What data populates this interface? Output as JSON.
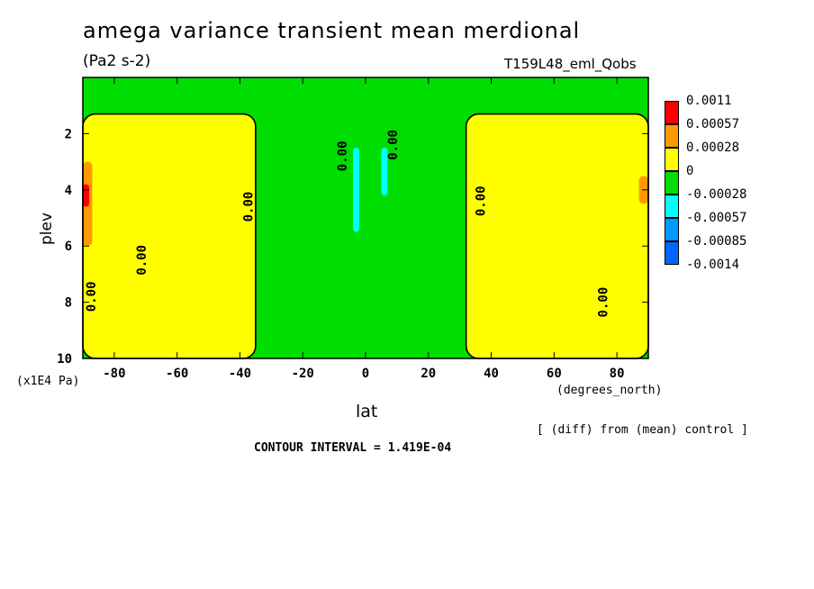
{
  "chart_data": {
    "type": "heatmap",
    "title": "amega variance transient mean merdional",
    "units": "(Pa2 s-2)",
    "run_label": "T159L48_eml_Qobs",
    "xlabel": "lat",
    "xunits": "(degrees_north)",
    "ylabel": "plev",
    "yunits": "(x1E4 Pa)",
    "x_ticks": [
      "-80",
      "-60",
      "-40",
      "-20",
      "0",
      "20",
      "40",
      "60",
      "80"
    ],
    "x_tick_values": [
      -80,
      -60,
      -40,
      -20,
      0,
      20,
      40,
      60,
      80
    ],
    "xlim": [
      -90,
      90
    ],
    "y_ticks": [
      "2",
      "4",
      "6",
      "8",
      "10"
    ],
    "y_tick_values": [
      2,
      4,
      6,
      8,
      10
    ],
    "ylim": [
      0,
      10
    ],
    "y_inverted": true,
    "contour_labels": [
      "0.00",
      "0.00",
      "0.00",
      "0.00",
      "0.00",
      "0.00",
      "0.00"
    ],
    "levels": [
      {
        "label": "0.0011",
        "color": "#ff0000"
      },
      {
        "label": "0.00057",
        "color": "#ff9900"
      },
      {
        "label": "0.00028",
        "color": "#ffff00"
      },
      {
        "label": "0",
        "color": "#00dd00"
      },
      {
        "label": "-0.00028",
        "color": "#00ffff"
      },
      {
        "label": "-0.00057",
        "color": "#0099ff"
      },
      {
        "label": "-0.00085",
        "color": "#0066ff"
      },
      {
        "label": "-0.0014",
        "color": null
      }
    ],
    "background_level_color": "#00dd00",
    "regions": [
      {
        "name": "sh-positive",
        "color": "#ffff00",
        "lat_range": [
          -90,
          -35
        ],
        "plev_range": [
          1.3,
          10
        ]
      },
      {
        "name": "nh-positive",
        "color": "#ffff00",
        "lat_range": [
          32,
          90
        ],
        "plev_range": [
          1.3,
          10
        ]
      },
      {
        "name": "sh-pos-max",
        "color": "#ff9900",
        "lat_range": [
          -90,
          -87
        ],
        "plev_range": [
          3,
          6
        ]
      },
      {
        "name": "sh-pos-max-core",
        "color": "#ff0000",
        "lat_range": [
          -90,
          -88
        ],
        "plev_range": [
          3.8,
          4.6
        ]
      },
      {
        "name": "nh-pos-max",
        "color": "#ff9900",
        "lat_range": [
          87,
          90
        ],
        "plev_range": [
          3.5,
          4.5
        ]
      },
      {
        "name": "tropical-negative",
        "color": "#00ffff",
        "lat_range": [
          -4,
          -2
        ],
        "plev_range": [
          2.5,
          5.5
        ]
      },
      {
        "name": "tropical-negative-2",
        "color": "#00ffff",
        "lat_range": [
          5,
          7
        ],
        "plev_range": [
          2.5,
          4.2
        ]
      }
    ],
    "grid": false,
    "legend_position": "right"
  },
  "annotations": {
    "diff_note": "[ (diff) from (mean) control ]",
    "contour_interval": "CONTOUR INTERVAL = 1.419E-04"
  }
}
